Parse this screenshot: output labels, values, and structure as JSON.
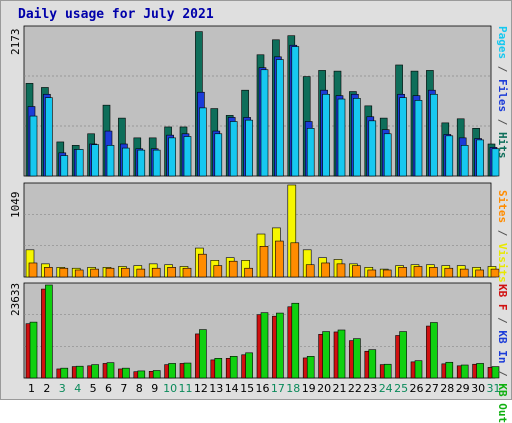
{
  "title": "Daily usage for July 2021",
  "colors": {
    "hits": "#0e6e5a",
    "files": "#1c3cd8",
    "pages": "#16c8f0",
    "visits": "#f6f600",
    "sites": "#ff8c00",
    "kbin": "#d01010",
    "kbout": "#10d010",
    "weekend_label": "#0a8a5a"
  },
  "right_labels": {
    "panel1": [
      {
        "text": "Pages",
        "color": "#16c8f0"
      },
      {
        "text": " / ",
        "color": "#555555"
      },
      {
        "text": "Files",
        "color": "#1c3cd8"
      },
      {
        "text": " / ",
        "color": "#555555"
      },
      {
        "text": "Hits",
        "color": "#0e6e5a"
      }
    ],
    "panel2": [
      {
        "text": "Sites",
        "color": "#ff8c00"
      },
      {
        "text": " / ",
        "color": "#555555"
      },
      {
        "text": "Visits",
        "color": "#e8e800"
      }
    ],
    "panel3": [
      {
        "text": "KB F",
        "color": "#d01010"
      },
      {
        "text": " / ",
        "color": "#555555"
      },
      {
        "text": "KB In",
        "color": "#1c3cd8"
      },
      {
        "text": " / ",
        "color": "#555555"
      },
      {
        "text": "KB Out",
        "color": "#10b010"
      }
    ]
  },
  "chart_data": [
    {
      "type": "bar",
      "panel": "hits-files-pages",
      "ylabel_max": "2173",
      "ylim": [
        0,
        2173
      ],
      "categories": [
        "1",
        "2",
        "3",
        "4",
        "5",
        "6",
        "7",
        "8",
        "9",
        "10",
        "11",
        "12",
        "13",
        "14",
        "15",
        "16",
        "17",
        "18",
        "19",
        "20",
        "21",
        "22",
        "23",
        "24",
        "25",
        "26",
        "27",
        "28",
        "29",
        "30",
        "31"
      ],
      "weekend_days": [
        "3",
        "4",
        "10",
        "11",
        "17",
        "18",
        "24",
        "25",
        "31"
      ],
      "series": [
        {
          "name": "Hits",
          "values": [
            1360,
            1300,
            500,
            450,
            620,
            1040,
            850,
            560,
            560,
            720,
            720,
            2120,
            990,
            890,
            1260,
            1780,
            2000,
            2060,
            1460,
            1550,
            1540,
            1240,
            1030,
            850,
            1630,
            1540,
            1550,
            780,
            840,
            700,
            470
          ]
        },
        {
          "name": "Files",
          "values": [
            1020,
            1200,
            340,
            390,
            470,
            660,
            470,
            400,
            400,
            600,
            620,
            1230,
            660,
            860,
            860,
            1590,
            1750,
            1920,
            800,
            1260,
            1180,
            1200,
            870,
            680,
            1200,
            1180,
            1260,
            610,
            560,
            550,
            420
          ]
        },
        {
          "name": "Pages",
          "values": [
            880,
            1150,
            300,
            390,
            460,
            450,
            410,
            380,
            380,
            560,
            580,
            1000,
            620,
            800,
            820,
            1560,
            1710,
            1900,
            700,
            1200,
            1130,
            1140,
            810,
            620,
            1150,
            1110,
            1200,
            590,
            450,
            530,
            400
          ]
        }
      ]
    },
    {
      "type": "bar",
      "panel": "visits-sites",
      "ylabel_max": "1049",
      "ylim": [
        0,
        1049
      ],
      "categories": [
        "1",
        "2",
        "3",
        "4",
        "5",
        "6",
        "7",
        "8",
        "9",
        "10",
        "11",
        "12",
        "13",
        "14",
        "15",
        "16",
        "17",
        "18",
        "19",
        "20",
        "21",
        "22",
        "23",
        "24",
        "25",
        "26",
        "27",
        "28",
        "29",
        "30",
        "31"
      ],
      "series": [
        {
          "name": "Visits",
          "values": [
            310,
            150,
            110,
            100,
            110,
            110,
            120,
            130,
            150,
            140,
            120,
            330,
            190,
            220,
            190,
            490,
            560,
            1049,
            310,
            220,
            200,
            150,
            110,
            90,
            130,
            140,
            140,
            130,
            130,
            110,
            120
          ]
        },
        {
          "name": "Sites",
          "values": [
            160,
            110,
            100,
            80,
            90,
            100,
            100,
            90,
            100,
            110,
            100,
            260,
            130,
            180,
            100,
            350,
            410,
            390,
            140,
            160,
            150,
            130,
            80,
            80,
            110,
            120,
            110,
            100,
            90,
            80,
            90
          ]
        }
      ]
    },
    {
      "type": "bar",
      "panel": "kbin-kbout",
      "ylabel_max": "23633",
      "ylim": [
        0,
        23633
      ],
      "categories": [
        "1",
        "2",
        "3",
        "4",
        "5",
        "6",
        "7",
        "8",
        "9",
        "10",
        "11",
        "12",
        "13",
        "14",
        "15",
        "16",
        "17",
        "18",
        "19",
        "20",
        "21",
        "22",
        "23",
        "24",
        "25",
        "26",
        "27",
        "28",
        "29",
        "30",
        "31"
      ],
      "series": [
        {
          "name": "KB In",
          "values": [
            13800,
            22600,
            2300,
            2900,
            3100,
            3700,
            2300,
            1600,
            1700,
            3400,
            3700,
            11200,
            4600,
            5000,
            5900,
            16100,
            15700,
            18100,
            5100,
            11100,
            11700,
            9500,
            6800,
            3400,
            10800,
            4100,
            13200,
            3600,
            3100,
            3500,
            2700
          ]
        },
        {
          "name": "KB Out",
          "values": [
            14200,
            23633,
            2500,
            3000,
            3400,
            3900,
            2500,
            1800,
            1900,
            3700,
            3800,
            12300,
            5000,
            5500,
            6400,
            16600,
            16500,
            19000,
            5500,
            11800,
            12200,
            10000,
            7200,
            3500,
            11800,
            4400,
            14100,
            4000,
            3300,
            3700,
            2900
          ]
        }
      ]
    }
  ]
}
